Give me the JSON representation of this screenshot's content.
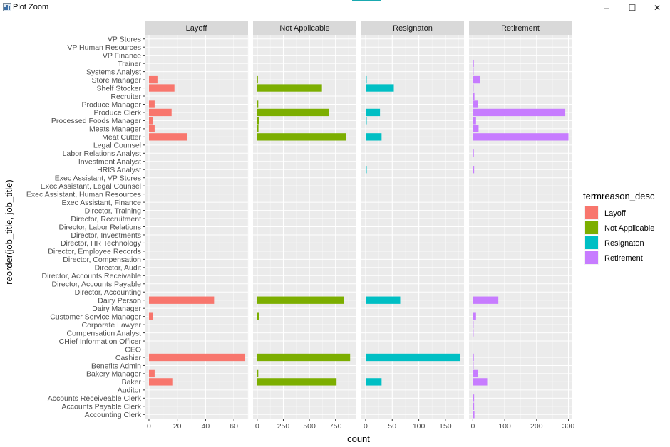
{
  "window": {
    "title": "Plot Zoom",
    "icon": "chart-app-icon",
    "controls": {
      "minimize": "–",
      "maximize": "☐",
      "close": "✕"
    }
  },
  "chart_data": {
    "type": "bar",
    "orientation": "horizontal",
    "xlabel": "count",
    "ylabel": "reorder(job_title, job_title)",
    "legend": {
      "title": "termreason_desc",
      "placement": "right",
      "entries": [
        {
          "name": "Layoff",
          "color": "#F8766D"
        },
        {
          "name": "Not Applicable",
          "color": "#7CAE00"
        },
        {
          "name": "Resignaton",
          "color": "#00BFC4"
        },
        {
          "name": "Retirement",
          "color": "#C77CFF"
        }
      ]
    },
    "categories": [
      "VP Stores",
      "VP Human Resources",
      "VP Finance",
      "Trainer",
      "Systems Analyst",
      "Store Manager",
      "Shelf Stocker",
      "Recruiter",
      "Produce Manager",
      "Produce Clerk",
      "Processed Foods Manager",
      "Meats Manager",
      "Meat Cutter",
      "Legal Counsel",
      "Labor Relations Analyst",
      "Investment Analyst",
      "HRIS Analyst",
      "Exec Assistant, VP Stores",
      "Exec Assistant, Legal Counsel",
      "Exec Assistant, Human Resources",
      "Exec Assistant, Finance",
      "Director, Training",
      "Director, Recruitment",
      "Director, Labor Relations",
      "Director, Investments",
      "Director, HR Technology",
      "Director, Employee Records",
      "Director, Compensation",
      "Director, Audit",
      "Director, Accounts Receivable",
      "Director, Accounts Payable",
      "Director, Accounting",
      "Dairy Person",
      "Dairy Manager",
      "Customer Service Manager",
      "Corporate Lawyer",
      "Compensation Analyst",
      "CHief Information Officer",
      "CEO",
      "Cashier",
      "Benefits Admin",
      "Bakery Manager",
      "Baker",
      "Auditor",
      "Accounts Receiveable Clerk",
      "Accounts Payable Clerk",
      "Accounting Clerk"
    ],
    "panels": [
      {
        "name": "Layoff",
        "color": "#F8766D",
        "xlim": [
          -3,
          70
        ],
        "ticks": [
          0,
          20,
          40,
          60
        ],
        "values": [
          0,
          0,
          0,
          0,
          0,
          6,
          18,
          0,
          4,
          16,
          3,
          4,
          27,
          0,
          0,
          0,
          0,
          0,
          0,
          0,
          0,
          0,
          0,
          0,
          0,
          0,
          0,
          0,
          0,
          0,
          0,
          0,
          46,
          0,
          3,
          0,
          0,
          0,
          0,
          68,
          0,
          4,
          17,
          0,
          0,
          0,
          0
        ]
      },
      {
        "name": "Not Applicable",
        "color": "#7CAE00",
        "xlim": [
          -40,
          950
        ],
        "ticks": [
          0,
          250,
          500,
          750
        ],
        "values": [
          0,
          0,
          0,
          0,
          0,
          5,
          620,
          0,
          10,
          690,
          15,
          12,
          850,
          0,
          0,
          0,
          0,
          0,
          0,
          0,
          0,
          0,
          0,
          0,
          0,
          0,
          0,
          0,
          0,
          0,
          0,
          0,
          830,
          0,
          18,
          0,
          0,
          0,
          0,
          890,
          0,
          10,
          760,
          0,
          0,
          0,
          0
        ]
      },
      {
        "name": "Resignaton",
        "color": "#00BFC4",
        "xlim": [
          -8,
          185
        ],
        "ticks": [
          0,
          50,
          100,
          150
        ],
        "values": [
          0,
          0,
          0,
          0,
          0,
          2,
          53,
          0,
          0,
          27,
          2,
          0,
          30,
          0,
          0,
          0,
          2,
          0,
          0,
          0,
          0,
          0,
          0,
          0,
          0,
          0,
          0,
          0,
          0,
          0,
          0,
          0,
          65,
          0,
          0,
          0,
          0,
          0,
          0,
          178,
          0,
          0,
          30,
          0,
          0,
          0,
          0
        ]
      },
      {
        "name": "Retirement",
        "color": "#C77CFF",
        "xlim": [
          -12,
          310
        ],
        "ticks": [
          0,
          100,
          200,
          300
        ],
        "values": [
          0,
          0,
          0,
          3,
          2,
          22,
          2,
          5,
          15,
          290,
          10,
          18,
          300,
          0,
          3,
          0,
          4,
          0,
          0,
          0,
          0,
          0,
          0,
          0,
          0,
          0,
          0,
          0,
          0,
          0,
          0,
          0,
          80,
          0,
          10,
          2,
          2,
          0,
          0,
          3,
          2,
          16,
          45,
          0,
          4,
          4,
          5
        ]
      }
    ],
    "grid": true
  }
}
